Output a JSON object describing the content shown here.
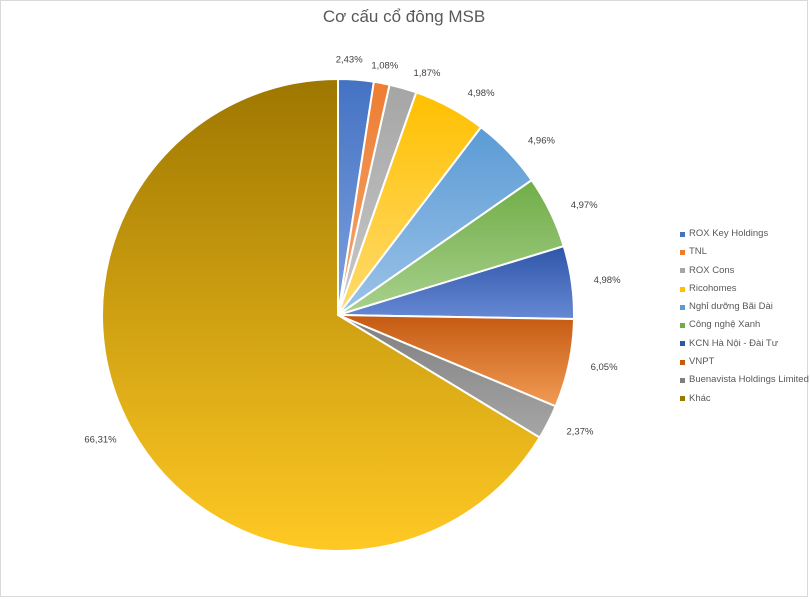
{
  "chart_data": {
    "type": "pie",
    "title": "Cơ cấu cổ đông MSB",
    "legend_position": "right",
    "start_angle_deg": 0,
    "direction": "clockwise",
    "slices": [
      {
        "name": "ROX Key Holdings",
        "value": 2.43,
        "label": "2,43%",
        "color": "#4472C4",
        "color_light": "#7FA2DE"
      },
      {
        "name": "TNL",
        "value": 1.08,
        "label": "1,08%",
        "color": "#ED7D31",
        "color_light": "#F4A873"
      },
      {
        "name": "ROX Cons",
        "value": 1.87,
        "label": "1,87%",
        "color": "#A5A5A5",
        "color_light": "#C9C9C9"
      },
      {
        "name": "Ricohomes",
        "value": 4.98,
        "label": "4,98%",
        "color": "#FFC000",
        "color_light": "#FFDB70"
      },
      {
        "name": "Nghỉ dưỡng Bãi Dài",
        "value": 4.96,
        "label": "4,96%",
        "color": "#5B9BD5",
        "color_light": "#9CC3E8"
      },
      {
        "name": "Công nghệ Xanh",
        "value": 4.97,
        "label": "4,97%",
        "color": "#70AD47",
        "color_light": "#A9D18E"
      },
      {
        "name": "KCN Hà Nội - Đài Tư",
        "value": 4.98,
        "label": "4,98%",
        "color": "#2F55A8",
        "color_light": "#6689D4"
      },
      {
        "name": "VNPT",
        "value": 6.05,
        "label": "6,05%",
        "color": "#C55A11",
        "color_light": "#F19B55"
      },
      {
        "name": "Buenavista Holdings Limited",
        "value": 2.37,
        "label": "2,37%",
        "color": "#7F7F7F",
        "color_light": "#A6A6A6"
      },
      {
        "name": "Khác",
        "value": 66.31,
        "label": "66,31%",
        "color": "#9E7700",
        "color_light": "#FFC924"
      }
    ]
  }
}
